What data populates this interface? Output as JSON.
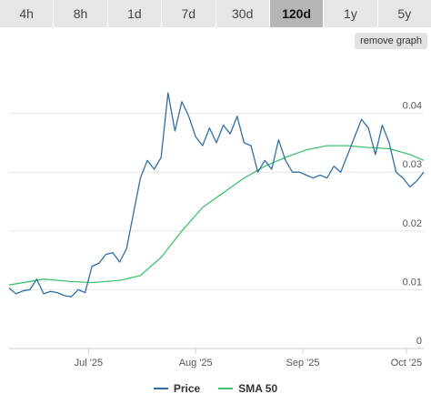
{
  "tabs": [
    {
      "label": "4h",
      "active": false
    },
    {
      "label": "8h",
      "active": false
    },
    {
      "label": "1d",
      "active": false
    },
    {
      "label": "7d",
      "active": false
    },
    {
      "label": "30d",
      "active": false
    },
    {
      "label": "120d",
      "active": true
    },
    {
      "label": "1y",
      "active": false
    },
    {
      "label": "5y",
      "active": false
    }
  ],
  "remove_graph_label": "remove graph",
  "chart_data": {
    "type": "line",
    "x_ticks": [
      "Jul '25",
      "Aug '25",
      "Sep '25",
      "Oct '25"
    ],
    "y_ticks": [
      "0",
      "0.01",
      "0.02",
      "0.03",
      "0.04"
    ],
    "ylim": [
      0,
      0.05
    ],
    "grid": true,
    "legend_position": "bottom",
    "series": [
      {
        "name": "Price",
        "color": "#2f6fa6",
        "x": [
          "2025-06-08",
          "2025-06-10",
          "2025-06-12",
          "2025-06-14",
          "2025-06-16",
          "2025-06-18",
          "2025-06-20",
          "2025-06-22",
          "2025-06-24",
          "2025-06-26",
          "2025-06-28",
          "2025-06-30",
          "2025-07-02",
          "2025-07-04",
          "2025-07-06",
          "2025-07-08",
          "2025-07-10",
          "2025-07-12",
          "2025-07-14",
          "2025-07-16",
          "2025-07-18",
          "2025-07-20",
          "2025-07-22",
          "2025-07-24",
          "2025-07-26",
          "2025-07-28",
          "2025-07-30",
          "2025-08-01",
          "2025-08-03",
          "2025-08-05",
          "2025-08-07",
          "2025-08-09",
          "2025-08-11",
          "2025-08-13",
          "2025-08-15",
          "2025-08-17",
          "2025-08-19",
          "2025-08-21",
          "2025-08-23",
          "2025-08-25",
          "2025-08-27",
          "2025-08-29",
          "2025-08-31",
          "2025-09-02",
          "2025-09-04",
          "2025-09-06",
          "2025-09-08",
          "2025-09-10",
          "2025-09-12",
          "2025-09-14",
          "2025-09-16",
          "2025-09-18",
          "2025-09-20",
          "2025-09-22",
          "2025-09-24",
          "2025-09-26",
          "2025-09-28",
          "2025-09-30",
          "2025-10-02",
          "2025-10-04",
          "2025-10-06"
        ],
        "values": [
          0.0103,
          0.0093,
          0.0098,
          0.01,
          0.0118,
          0.0093,
          0.0097,
          0.0095,
          0.009,
          0.0088,
          0.01,
          0.0095,
          0.014,
          0.0145,
          0.016,
          0.0163,
          0.0147,
          0.017,
          0.023,
          0.029,
          0.032,
          0.0305,
          0.0325,
          0.0435,
          0.037,
          0.042,
          0.0395,
          0.036,
          0.0345,
          0.0375,
          0.035,
          0.038,
          0.0365,
          0.0395,
          0.035,
          0.0345,
          0.03,
          0.032,
          0.0305,
          0.0355,
          0.032,
          0.03,
          0.03,
          0.0295,
          0.029,
          0.0295,
          0.029,
          0.031,
          0.03,
          0.033,
          0.036,
          0.039,
          0.0375,
          0.033,
          0.038,
          0.035,
          0.03,
          0.029,
          0.0275,
          0.0285,
          0.03
        ]
      },
      {
        "name": "SMA 50",
        "color": "#3ec46d",
        "x": [
          "2025-06-08",
          "2025-06-18",
          "2025-06-26",
          "2025-07-02",
          "2025-07-10",
          "2025-07-16",
          "2025-07-22",
          "2025-07-28",
          "2025-08-03",
          "2025-08-09",
          "2025-08-15",
          "2025-08-21",
          "2025-08-27",
          "2025-09-02",
          "2025-09-08",
          "2025-09-14",
          "2025-09-20",
          "2025-09-26",
          "2025-10-02",
          "2025-10-06"
        ],
        "values": [
          0.0108,
          0.0118,
          0.0114,
          0.0112,
          0.0116,
          0.0124,
          0.0155,
          0.02,
          0.024,
          0.0265,
          0.029,
          0.031,
          0.0325,
          0.0338,
          0.0345,
          0.0345,
          0.0342,
          0.034,
          0.033,
          0.032
        ]
      }
    ],
    "last_value_label": "0.03"
  }
}
